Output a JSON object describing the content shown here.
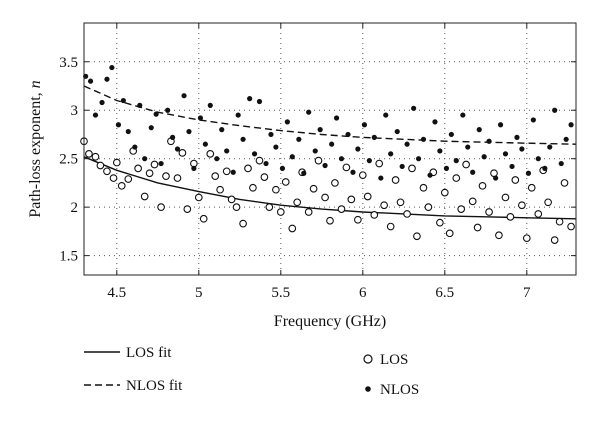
{
  "chart_data": {
    "type": "scatter",
    "xlabel": "Frequency (GHz)",
    "ylabel": "Path-loss exponent, ",
    "ylabel_symbol": "n",
    "xlim": [
      4.3,
      7.3
    ],
    "ylim": [
      1.3,
      3.9
    ],
    "xticks": [
      "4.5",
      "5",
      "5.5",
      "6",
      "6.5",
      "7"
    ],
    "xtick_values": [
      4.5,
      5,
      5.5,
      6,
      6.5,
      7
    ],
    "yticks": [
      "1.5",
      "2",
      "2.5",
      "3",
      "3.5"
    ],
    "ytick_values": [
      1.5,
      2,
      2.5,
      3,
      3.5
    ],
    "grid": true,
    "legend_position": "bottom",
    "series": [
      {
        "name": "LOS",
        "marker": "open-circle",
        "color": "#111111",
        "points": [
          [
            4.3,
            2.68
          ],
          [
            4.33,
            2.55
          ],
          [
            4.37,
            2.52
          ],
          [
            4.4,
            2.43
          ],
          [
            4.44,
            2.37
          ],
          [
            4.48,
            2.3
          ],
          [
            4.5,
            2.46
          ],
          [
            4.53,
            2.22
          ],
          [
            4.57,
            2.29
          ],
          [
            4.6,
            2.58
          ],
          [
            4.63,
            2.4
          ],
          [
            4.67,
            2.11
          ],
          [
            4.7,
            2.35
          ],
          [
            4.73,
            2.44
          ],
          [
            4.77,
            2.0
          ],
          [
            4.8,
            2.32
          ],
          [
            4.83,
            2.68
          ],
          [
            4.87,
            2.3
          ],
          [
            4.9,
            2.56
          ],
          [
            4.93,
            1.98
          ],
          [
            4.97,
            2.45
          ],
          [
            5.0,
            2.1
          ],
          [
            5.03,
            1.88
          ],
          [
            5.07,
            2.55
          ],
          [
            5.1,
            2.32
          ],
          [
            5.13,
            2.18
          ],
          [
            5.17,
            2.37
          ],
          [
            5.2,
            2.08
          ],
          [
            5.23,
            2.0
          ],
          [
            5.27,
            1.83
          ],
          [
            5.3,
            2.4
          ],
          [
            5.33,
            2.2
          ],
          [
            5.37,
            2.48
          ],
          [
            5.4,
            2.31
          ],
          [
            5.43,
            2.0
          ],
          [
            5.47,
            2.18
          ],
          [
            5.5,
            1.95
          ],
          [
            5.53,
            2.26
          ],
          [
            5.57,
            1.78
          ],
          [
            5.6,
            2.05
          ],
          [
            5.63,
            2.36
          ],
          [
            5.67,
            1.95
          ],
          [
            5.7,
            2.19
          ],
          [
            5.73,
            2.48
          ],
          [
            5.77,
            2.1
          ],
          [
            5.8,
            1.86
          ],
          [
            5.83,
            2.25
          ],
          [
            5.87,
            1.98
          ],
          [
            5.9,
            2.41
          ],
          [
            5.93,
            2.08
          ],
          [
            5.97,
            1.87
          ],
          [
            6.0,
            2.33
          ],
          [
            6.03,
            2.11
          ],
          [
            6.07,
            1.92
          ],
          [
            6.1,
            2.45
          ],
          [
            6.13,
            2.02
          ],
          [
            6.17,
            1.8
          ],
          [
            6.2,
            2.28
          ],
          [
            6.23,
            2.05
          ],
          [
            6.27,
            1.93
          ],
          [
            6.3,
            2.4
          ],
          [
            6.33,
            1.7
          ],
          [
            6.37,
            2.2
          ],
          [
            6.4,
            2.0
          ],
          [
            6.43,
            2.36
          ],
          [
            6.47,
            1.84
          ],
          [
            6.5,
            2.15
          ],
          [
            6.53,
            1.73
          ],
          [
            6.57,
            2.3
          ],
          [
            6.6,
            1.98
          ],
          [
            6.63,
            2.44
          ],
          [
            6.67,
            2.06
          ],
          [
            6.7,
            1.79
          ],
          [
            6.73,
            2.22
          ],
          [
            6.77,
            1.95
          ],
          [
            6.8,
            2.35
          ],
          [
            6.83,
            1.71
          ],
          [
            6.87,
            2.1
          ],
          [
            6.9,
            1.9
          ],
          [
            6.93,
            2.28
          ],
          [
            6.97,
            2.02
          ],
          [
            7.0,
            1.68
          ],
          [
            7.03,
            2.2
          ],
          [
            7.07,
            1.93
          ],
          [
            7.1,
            2.38
          ],
          [
            7.13,
            2.05
          ],
          [
            7.17,
            1.66
          ],
          [
            7.2,
            1.85
          ],
          [
            7.23,
            2.25
          ],
          [
            7.27,
            1.8
          ]
        ]
      },
      {
        "name": "NLOS",
        "marker": "filled-dot",
        "color": "#111111",
        "points": [
          [
            4.31,
            3.35
          ],
          [
            4.34,
            3.3
          ],
          [
            4.37,
            2.95
          ],
          [
            4.41,
            3.08
          ],
          [
            4.44,
            3.32
          ],
          [
            4.47,
            3.44
          ],
          [
            4.51,
            2.85
          ],
          [
            4.54,
            3.1
          ],
          [
            4.57,
            2.78
          ],
          [
            4.61,
            2.62
          ],
          [
            4.64,
            3.05
          ],
          [
            4.67,
            2.5
          ],
          [
            4.71,
            2.82
          ],
          [
            4.74,
            2.96
          ],
          [
            4.77,
            2.45
          ],
          [
            4.81,
            3.0
          ],
          [
            4.84,
            2.72
          ],
          [
            4.87,
            2.6
          ],
          [
            4.91,
            3.15
          ],
          [
            4.94,
            2.78
          ],
          [
            4.97,
            2.4
          ],
          [
            5.01,
            2.92
          ],
          [
            5.04,
            2.65
          ],
          [
            5.07,
            3.05
          ],
          [
            5.11,
            2.5
          ],
          [
            5.14,
            2.8
          ],
          [
            5.17,
            2.58
          ],
          [
            5.21,
            2.36
          ],
          [
            5.24,
            2.95
          ],
          [
            5.27,
            2.7
          ],
          [
            5.31,
            3.12
          ],
          [
            5.34,
            2.55
          ],
          [
            5.37,
            3.09
          ],
          [
            5.41,
            2.45
          ],
          [
            5.44,
            2.75
          ],
          [
            5.47,
            2.62
          ],
          [
            5.51,
            2.4
          ],
          [
            5.54,
            2.88
          ],
          [
            5.57,
            2.52
          ],
          [
            5.61,
            2.7
          ],
          [
            5.64,
            2.35
          ],
          [
            5.67,
            2.98
          ],
          [
            5.71,
            2.58
          ],
          [
            5.74,
            2.8
          ],
          [
            5.77,
            2.43
          ],
          [
            5.81,
            2.65
          ],
          [
            5.84,
            2.92
          ],
          [
            5.87,
            2.5
          ],
          [
            5.91,
            2.75
          ],
          [
            5.94,
            2.36
          ],
          [
            5.97,
            2.6
          ],
          [
            6.01,
            2.85
          ],
          [
            6.04,
            2.48
          ],
          [
            6.07,
            2.72
          ],
          [
            6.11,
            2.3
          ],
          [
            6.14,
            2.95
          ],
          [
            6.17,
            2.55
          ],
          [
            6.21,
            2.78
          ],
          [
            6.24,
            2.42
          ],
          [
            6.27,
            2.65
          ],
          [
            6.31,
            3.02
          ],
          [
            6.34,
            2.5
          ],
          [
            6.37,
            2.7
          ],
          [
            6.41,
            2.33
          ],
          [
            6.44,
            2.88
          ],
          [
            6.47,
            2.58
          ],
          [
            6.51,
            2.4
          ],
          [
            6.54,
            2.75
          ],
          [
            6.57,
            2.48
          ],
          [
            6.61,
            2.95
          ],
          [
            6.64,
            2.62
          ],
          [
            6.67,
            2.36
          ],
          [
            6.71,
            2.8
          ],
          [
            6.74,
            2.52
          ],
          [
            6.77,
            2.68
          ],
          [
            6.81,
            2.3
          ],
          [
            6.84,
            2.85
          ],
          [
            6.87,
            2.55
          ],
          [
            6.91,
            2.42
          ],
          [
            6.94,
            2.72
          ],
          [
            6.97,
            2.6
          ],
          [
            7.01,
            2.35
          ],
          [
            7.04,
            2.9
          ],
          [
            7.07,
            2.5
          ],
          [
            7.11,
            2.4
          ],
          [
            7.14,
            2.62
          ],
          [
            7.17,
            3.0
          ],
          [
            7.21,
            2.45
          ],
          [
            7.24,
            2.7
          ],
          [
            7.27,
            2.85
          ]
        ]
      }
    ],
    "fits": [
      {
        "name": "LOS fit",
        "style": "solid",
        "points": [
          [
            4.3,
            2.52
          ],
          [
            4.5,
            2.38
          ],
          [
            4.75,
            2.25
          ],
          [
            5.0,
            2.16
          ],
          [
            5.25,
            2.08
          ],
          [
            5.5,
            2.02
          ],
          [
            5.75,
            1.98
          ],
          [
            6.0,
            1.95
          ],
          [
            6.25,
            1.93
          ],
          [
            6.5,
            1.91
          ],
          [
            6.75,
            1.9
          ],
          [
            7.0,
            1.89
          ],
          [
            7.3,
            1.88
          ]
        ]
      },
      {
        "name": "NLOS fit",
        "style": "dashed",
        "points": [
          [
            4.3,
            3.25
          ],
          [
            4.5,
            3.1
          ],
          [
            4.75,
            2.98
          ],
          [
            5.0,
            2.9
          ],
          [
            5.25,
            2.84
          ],
          [
            5.5,
            2.79
          ],
          [
            5.75,
            2.75
          ],
          [
            6.0,
            2.72
          ],
          [
            6.25,
            2.7
          ],
          [
            6.5,
            2.68
          ],
          [
            6.75,
            2.67
          ],
          [
            7.0,
            2.66
          ],
          [
            7.3,
            2.65
          ]
        ]
      }
    ],
    "legend": [
      {
        "label": "LOS fit",
        "kind": "solid-line"
      },
      {
        "label": "NLOS fit",
        "kind": "dashed-line"
      },
      {
        "label": "LOS",
        "kind": "open-circle"
      },
      {
        "label": "NLOS",
        "kind": "filled-dot"
      }
    ]
  }
}
